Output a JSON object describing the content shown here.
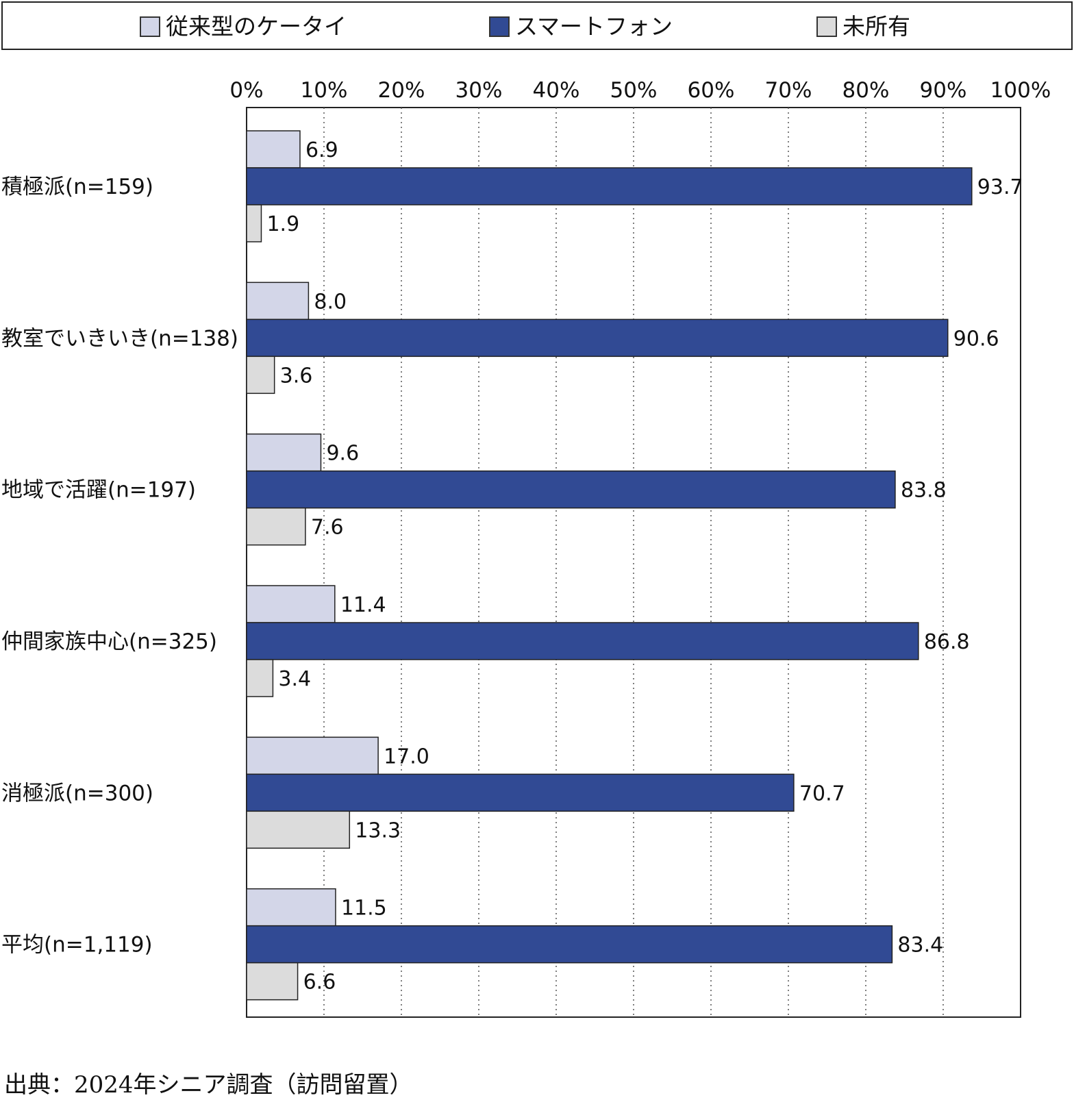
{
  "chart_data": {
    "type": "bar",
    "orientation": "horizontal",
    "categories": [
      "積極派(n=159)",
      "教室でいきいき(n=138)",
      "地域で活躍(n=197)",
      "仲間家族中心(n=325)",
      "消極派(n=300)",
      "平均(n=1,119)"
    ],
    "series": [
      {
        "name": "従来型のケータイ",
        "color": "#d3d6e8",
        "values": [
          6.9,
          8.0,
          9.6,
          11.4,
          17.0,
          11.5
        ],
        "labels": [
          "6.9",
          "8.0",
          "9.6",
          "11.4",
          "17.0",
          "11.5"
        ]
      },
      {
        "name": "スマートフォン",
        "color": "#314a94",
        "values": [
          93.7,
          90.6,
          83.8,
          86.8,
          70.7,
          83.4
        ],
        "labels": [
          "93.7",
          "90.6",
          "83.8",
          "86.8",
          "70.7",
          "83.4"
        ]
      },
      {
        "name": "未所有",
        "color": "#dcdcdc",
        "values": [
          1.9,
          3.6,
          7.6,
          3.4,
          13.3,
          6.6
        ],
        "labels": [
          "1.9",
          "3.6",
          "7.6",
          "3.4",
          "13.3",
          "6.6"
        ]
      }
    ],
    "xlim": [
      0,
      100
    ],
    "xticks": [
      "0%",
      "10%",
      "20%",
      "30%",
      "40%",
      "50%",
      "60%",
      "70%",
      "80%",
      "90%",
      "100%"
    ],
    "grid": "vertical dotted",
    "legend_position": "top"
  },
  "source": "出典：2024年シニア調査（訪問留置）"
}
